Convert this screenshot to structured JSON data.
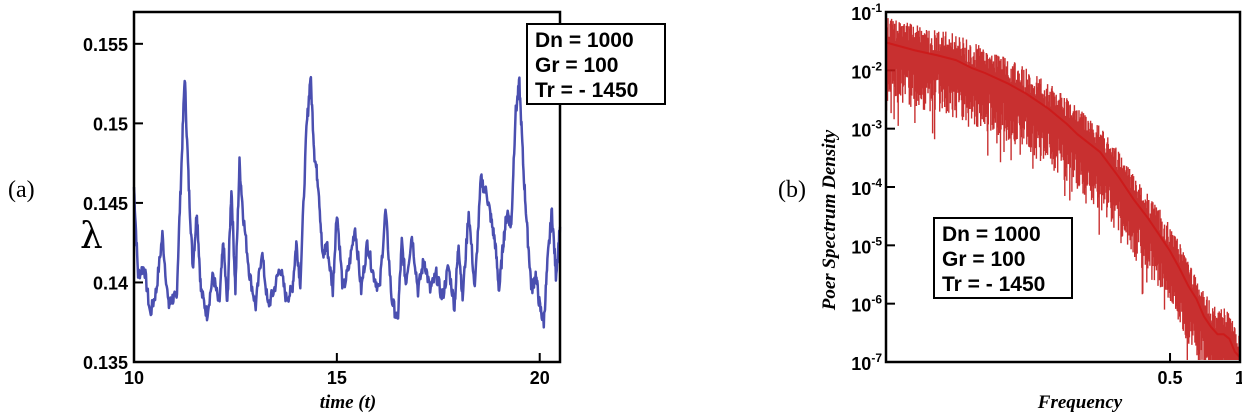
{
  "chart_data": [
    {
      "panel_label": "(a)",
      "type": "line",
      "xlabel": "time (t)",
      "ylabel": "λ",
      "xlim": [
        10,
        20.5
      ],
      "ylim": [
        0.135,
        0.157
      ],
      "x_ticks": [
        "10",
        "15",
        "20"
      ],
      "y_ticks": [
        "0.135",
        "0.14",
        "0.145",
        "0.15",
        "0.155"
      ],
      "grid": false,
      "line_color": "#4a4fb0",
      "legend_box": [
        "Dn = 1000",
        "Gr = 100",
        "Tr = - 1450"
      ],
      "legend_position": "top-right",
      "series": [
        {
          "x": [
            10.0,
            10.1,
            10.25,
            10.4,
            10.55,
            10.7,
            10.85,
            10.95,
            11.05,
            11.15,
            11.25,
            11.35,
            11.45,
            11.55,
            11.65,
            11.8,
            11.95,
            12.1,
            12.2,
            12.3,
            12.4,
            12.5,
            12.6,
            12.7,
            12.85,
            13.0,
            13.15,
            13.3,
            13.45,
            13.6,
            13.75,
            13.9,
            14.0,
            14.1,
            14.25,
            14.35,
            14.45,
            14.55,
            14.65,
            14.75,
            14.9,
            15.0,
            15.15,
            15.3,
            15.45,
            15.6,
            15.75,
            15.9,
            16.05,
            16.2,
            16.35,
            16.5,
            16.6,
            16.7,
            16.85,
            17.0,
            17.15,
            17.3,
            17.45,
            17.6,
            17.75,
            17.9,
            18.0,
            18.1,
            18.25,
            18.4,
            18.55,
            18.7,
            18.8,
            18.9,
            19.0,
            19.1,
            19.2,
            19.3,
            19.4,
            19.5,
            19.6,
            19.7,
            19.8,
            19.9,
            20.0,
            20.1,
            20.2,
            20.3,
            20.4,
            20.5
          ],
          "y": [
            0.146,
            0.1405,
            0.141,
            0.138,
            0.1395,
            0.143,
            0.1385,
            0.139,
            0.139,
            0.146,
            0.153,
            0.146,
            0.141,
            0.1445,
            0.1395,
            0.138,
            0.1405,
            0.1385,
            0.1425,
            0.1385,
            0.146,
            0.1395,
            0.1475,
            0.144,
            0.1405,
            0.1385,
            0.142,
            0.1385,
            0.1395,
            0.141,
            0.139,
            0.1395,
            0.1425,
            0.14,
            0.1495,
            0.153,
            0.148,
            0.146,
            0.1415,
            0.1425,
            0.1395,
            0.1445,
            0.1395,
            0.141,
            0.1435,
            0.1395,
            0.1425,
            0.1405,
            0.1395,
            0.1445,
            0.139,
            0.1375,
            0.1425,
            0.14,
            0.143,
            0.1395,
            0.1415,
            0.1395,
            0.1405,
            0.139,
            0.141,
            0.1385,
            0.1425,
            0.139,
            0.1445,
            0.1395,
            0.1465,
            0.1455,
            0.144,
            0.1425,
            0.1395,
            0.1425,
            0.1445,
            0.1435,
            0.1505,
            0.1525,
            0.147,
            0.143,
            0.1395,
            0.1405,
            0.1385,
            0.1375,
            0.1415,
            0.1445,
            0.1405,
            0.1435
          ]
        }
      ]
    },
    {
      "panel_label": "(b)",
      "type": "line",
      "xlabel": "Frequency",
      "ylabel": "Poer Spectrum Density",
      "x_scale": "log",
      "y_scale": "log",
      "xlim": [
        0.03,
        1
      ],
      "ylim": [
        1e-07,
        0.1
      ],
      "x_ticks": [
        "0.5",
        "1"
      ],
      "y_ticks": [
        "10-1",
        "10-2",
        "10-3",
        "10-4",
        "10-5",
        "10-6",
        "10-7"
      ],
      "grid": false,
      "line_color": "#cc1b1b",
      "legend_box": [
        "Dn = 1000",
        "Gr = 100",
        "Tr = - 1450"
      ],
      "legend_position": "lower-left",
      "series": [
        {
          "x": [
            0.03,
            0.04,
            0.05,
            0.06,
            0.07,
            0.08,
            0.1,
            0.12,
            0.15,
            0.18,
            0.2,
            0.25,
            0.3,
            0.35,
            0.4,
            0.45,
            0.5,
            0.55,
            0.6,
            0.65,
            0.7,
            0.75,
            0.8,
            0.85,
            0.9,
            0.95,
            1.0
          ],
          "y": [
            0.03,
            0.022,
            0.018,
            0.015,
            0.011,
            0.009,
            0.006,
            0.004,
            0.0022,
            0.0012,
            0.0008,
            0.0004,
            0.00015,
            6e-05,
            3e-05,
            1.5e-05,
            8e-06,
            4e-06,
            2e-06,
            1.2e-06,
            6e-07,
            4e-07,
            3e-07,
            3e-07,
            2.5e-07,
            1.5e-07,
            1.2e-07
          ]
        }
      ]
    }
  ]
}
